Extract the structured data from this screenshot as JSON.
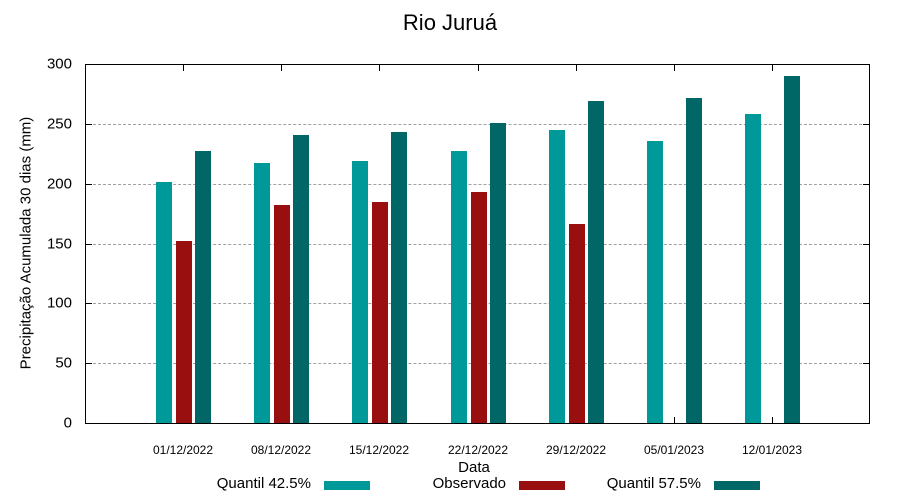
{
  "chart_data": {
    "type": "bar",
    "title": "Rio Juruá",
    "xlabel": "Data",
    "ylabel": "Precipitação Acumulada 30 dias (mm)",
    "ylim": [
      0,
      300
    ],
    "yticks": [
      0,
      50,
      100,
      150,
      200,
      250,
      300
    ],
    "grid": true,
    "legend_position": "bottom",
    "categories": [
      "01/12/2022",
      "08/12/2022",
      "15/12/2022",
      "22/12/2022",
      "29/12/2022",
      "05/01/2023",
      "12/01/2023"
    ],
    "series": [
      {
        "name": "Quantil 42.5%",
        "color": "#009999",
        "values": [
          201,
          217,
          219,
          227,
          245,
          236,
          258
        ]
      },
      {
        "name": "Observado",
        "color": "#990f0f",
        "values": [
          152,
          182,
          185,
          193,
          166,
          null,
          null
        ]
      },
      {
        "name": "Quantil 57.5%",
        "color": "#006666",
        "values": [
          227,
          241,
          243,
          251,
          269,
          272,
          290
        ]
      }
    ]
  },
  "labels": {
    "title": "Rio Juruá",
    "xlabel": "Data",
    "ylabel": "Precipitação Acumulada 30 dias (mm)",
    "yticks": [
      "0",
      "50",
      "100",
      "150",
      "200",
      "250",
      "300"
    ],
    "xticks": [
      "01/12/2022",
      "08/12/2022",
      "15/12/2022",
      "22/12/2022",
      "29/12/2022",
      "05/01/2023",
      "12/01/2023"
    ],
    "legend": [
      "Quantil 42.5%",
      "Observado",
      "Quantil 57.5%"
    ]
  }
}
